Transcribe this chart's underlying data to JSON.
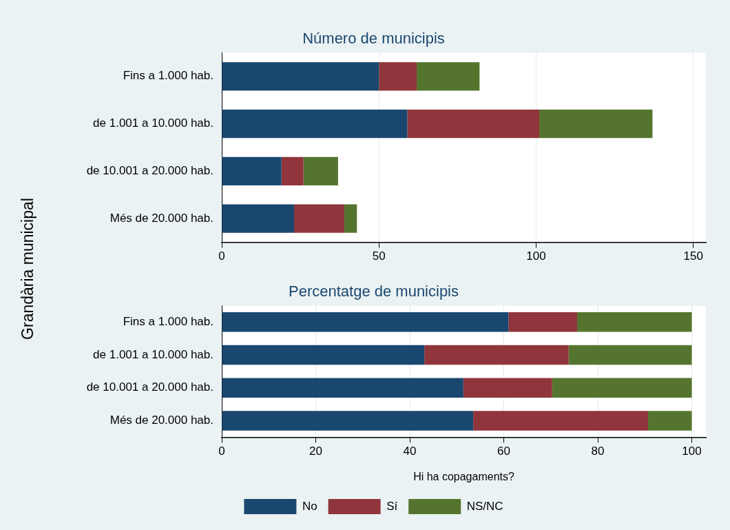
{
  "chart_data": [
    {
      "type": "bar",
      "orientation": "horizontal",
      "stacked": true,
      "title": "Número de municipis",
      "ylabel": "Grandària municipal",
      "categories": [
        "Fins a 1.000 hab.",
        "de 1.001 a 10.000 hab.",
        "de 10.001 a 20.000 hab.",
        "Més de 20.000 hab."
      ],
      "series": [
        {
          "color": "#1a476f",
          "values": [
            50,
            59,
            19,
            23
          ]
        },
        {
          "color": "#90353b",
          "values": [
            12,
            42,
            7,
            16
          ]
        },
        {
          "color": "#55752f",
          "values": [
            20,
            36,
            11,
            4
          ]
        }
      ],
      "xlim": [
        0,
        154
      ],
      "xticks": [
        0,
        50,
        100,
        150
      ],
      "grid": "x",
      "legend": false
    },
    {
      "type": "bar",
      "orientation": "horizontal",
      "stacked": true,
      "title": "Percentatge de municipis",
      "xlabel": "Hi ha copagaments?",
      "categories": [
        "Fins a 1.000 hab.",
        "de 1.001 a 10.000 hab.",
        "de 10.001 a 20.000 hab.",
        "Més de 20.000 hab."
      ],
      "series": [
        {
          "name": "No",
          "color": "#1a476f",
          "values": [
            61,
            43.1,
            51.4,
            53.5
          ]
        },
        {
          "name": "Sí",
          "color": "#90353b",
          "values": [
            14.6,
            30.7,
            18.9,
            37.2
          ]
        },
        {
          "name": "NS/NC",
          "color": "#55752f",
          "values": [
            24.4,
            26.2,
            29.7,
            9.3
          ]
        }
      ],
      "xlim": [
        0,
        103
      ],
      "xticks": [
        0,
        20,
        40,
        60,
        80,
        100
      ],
      "grid": "x",
      "legend": "bottom"
    }
  ]
}
